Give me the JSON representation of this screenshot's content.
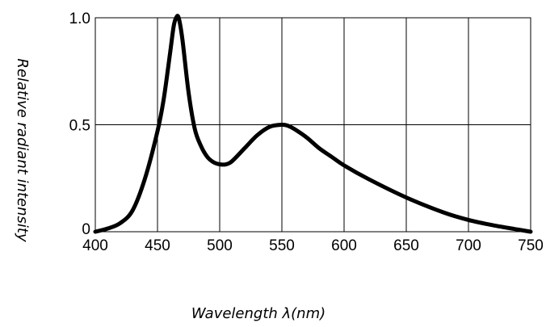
{
  "chart_data": {
    "type": "line",
    "title": "",
    "xlabel": "Wavelength λ(nm)",
    "ylabel": "Relative radiant intensity",
    "xlim": [
      400,
      750
    ],
    "ylim": [
      0,
      1.0
    ],
    "x_ticks": [
      400,
      450,
      500,
      550,
      600,
      650,
      700,
      750
    ],
    "y_ticks": [
      0,
      0.5,
      1.0
    ],
    "y_tick_labels": [
      "0",
      "0.5",
      "1.0"
    ],
    "grid": true,
    "series": [
      {
        "color": "#000000",
        "x": [
          400,
          410,
          420,
          430,
          440,
          450,
          455,
          460,
          463,
          465,
          467,
          470,
          475,
          480,
          485,
          490,
          495,
          500,
          505,
          510,
          520,
          530,
          540,
          550,
          555,
          560,
          570,
          580,
          590,
          600,
          620,
          650,
          680,
          700,
          720,
          740,
          750
        ],
        "y": [
          0.0,
          0.015,
          0.04,
          0.1,
          0.25,
          0.47,
          0.62,
          0.83,
          0.96,
          1.0,
          1.0,
          0.9,
          0.65,
          0.48,
          0.4,
          0.35,
          0.325,
          0.315,
          0.315,
          0.33,
          0.39,
          0.45,
          0.49,
          0.5,
          0.495,
          0.48,
          0.44,
          0.39,
          0.35,
          0.31,
          0.245,
          0.16,
          0.09,
          0.055,
          0.03,
          0.01,
          0.0
        ]
      }
    ]
  }
}
